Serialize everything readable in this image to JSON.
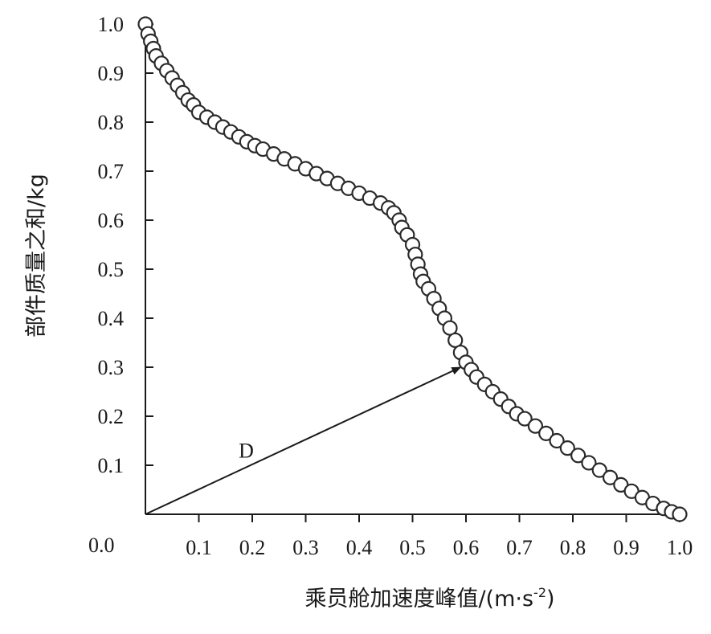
{
  "chart_data": {
    "type": "scatter",
    "xlabel": "乘员舱加速度峰值/(m·s",
    "xlabel_sup": "-2",
    "xlabel_close": ")",
    "ylabel": "部件质量之和/kg",
    "xlim": [
      0,
      1.0
    ],
    "ylim": [
      0,
      1.0
    ],
    "origin_label": "0.0",
    "x_ticks": [
      0.1,
      0.2,
      0.3,
      0.4,
      0.5,
      0.6,
      0.7,
      0.8,
      0.9,
      1.0
    ],
    "x_tick_labels": [
      "0.1",
      "0.2",
      "0.3",
      "0.4",
      "0.5",
      "0.6",
      "0.7",
      "0.8",
      "0.9",
      "1.0"
    ],
    "y_ticks": [
      0.1,
      0.2,
      0.3,
      0.4,
      0.5,
      0.6,
      0.7,
      0.8,
      0.9,
      1.0
    ],
    "y_tick_labels": [
      "0.1",
      "0.2",
      "0.3",
      "0.4",
      "0.5",
      "0.6",
      "0.7",
      "0.8",
      "0.9",
      "1.0"
    ],
    "grid": false,
    "marker": "open-circle",
    "annotation": {
      "text": "D",
      "arrow_from": [
        0,
        0
      ],
      "arrow_to": [
        0.59,
        0.3
      ]
    },
    "points": [
      [
        0.0,
        1.0
      ],
      [
        0.005,
        0.98
      ],
      [
        0.01,
        0.965
      ],
      [
        0.015,
        0.95
      ],
      [
        0.02,
        0.935
      ],
      [
        0.03,
        0.92
      ],
      [
        0.04,
        0.905
      ],
      [
        0.05,
        0.89
      ],
      [
        0.06,
        0.875
      ],
      [
        0.07,
        0.86
      ],
      [
        0.08,
        0.845
      ],
      [
        0.09,
        0.835
      ],
      [
        0.1,
        0.82
      ],
      [
        0.115,
        0.81
      ],
      [
        0.13,
        0.8
      ],
      [
        0.145,
        0.79
      ],
      [
        0.16,
        0.78
      ],
      [
        0.175,
        0.77
      ],
      [
        0.19,
        0.76
      ],
      [
        0.205,
        0.752
      ],
      [
        0.22,
        0.745
      ],
      [
        0.24,
        0.735
      ],
      [
        0.26,
        0.725
      ],
      [
        0.28,
        0.715
      ],
      [
        0.3,
        0.705
      ],
      [
        0.32,
        0.695
      ],
      [
        0.34,
        0.685
      ],
      [
        0.36,
        0.675
      ],
      [
        0.38,
        0.665
      ],
      [
        0.4,
        0.655
      ],
      [
        0.42,
        0.645
      ],
      [
        0.44,
        0.635
      ],
      [
        0.455,
        0.625
      ],
      [
        0.465,
        0.615
      ],
      [
        0.475,
        0.6
      ],
      [
        0.48,
        0.585
      ],
      [
        0.49,
        0.57
      ],
      [
        0.5,
        0.55
      ],
      [
        0.505,
        0.53
      ],
      [
        0.51,
        0.51
      ],
      [
        0.515,
        0.49
      ],
      [
        0.52,
        0.475
      ],
      [
        0.53,
        0.46
      ],
      [
        0.54,
        0.44
      ],
      [
        0.55,
        0.42
      ],
      [
        0.56,
        0.4
      ],
      [
        0.57,
        0.38
      ],
      [
        0.58,
        0.355
      ],
      [
        0.59,
        0.33
      ],
      [
        0.6,
        0.31
      ],
      [
        0.61,
        0.295
      ],
      [
        0.62,
        0.28
      ],
      [
        0.635,
        0.265
      ],
      [
        0.65,
        0.25
      ],
      [
        0.665,
        0.235
      ],
      [
        0.68,
        0.22
      ],
      [
        0.695,
        0.205
      ],
      [
        0.71,
        0.195
      ],
      [
        0.73,
        0.18
      ],
      [
        0.75,
        0.165
      ],
      [
        0.77,
        0.15
      ],
      [
        0.79,
        0.135
      ],
      [
        0.81,
        0.12
      ],
      [
        0.83,
        0.105
      ],
      [
        0.85,
        0.09
      ],
      [
        0.87,
        0.075
      ],
      [
        0.89,
        0.06
      ],
      [
        0.91,
        0.047
      ],
      [
        0.93,
        0.034
      ],
      [
        0.95,
        0.022
      ],
      [
        0.97,
        0.012
      ],
      [
        0.985,
        0.005
      ],
      [
        1.0,
        0.0
      ]
    ]
  }
}
